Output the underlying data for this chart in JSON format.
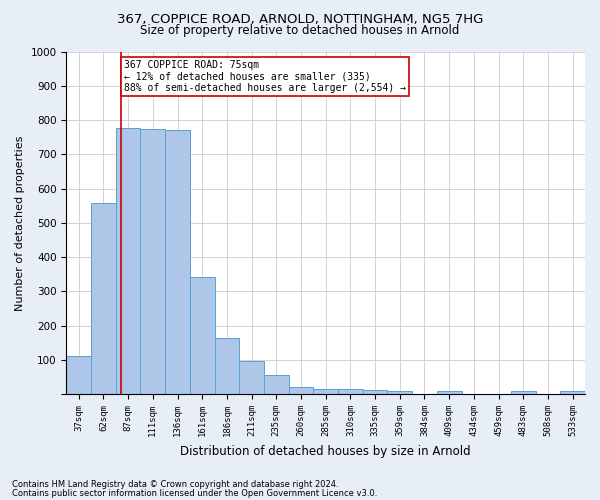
{
  "title1": "367, COPPICE ROAD, ARNOLD, NOTTINGHAM, NG5 7HG",
  "title2": "Size of property relative to detached houses in Arnold",
  "xlabel": "Distribution of detached houses by size in Arnold",
  "ylabel": "Number of detached properties",
  "categories": [
    "37sqm",
    "62sqm",
    "87sqm",
    "111sqm",
    "136sqm",
    "161sqm",
    "186sqm",
    "211sqm",
    "235sqm",
    "260sqm",
    "285sqm",
    "310sqm",
    "335sqm",
    "359sqm",
    "384sqm",
    "409sqm",
    "434sqm",
    "459sqm",
    "483sqm",
    "508sqm",
    "533sqm"
  ],
  "values": [
    112,
    558,
    778,
    775,
    770,
    343,
    165,
    98,
    55,
    20,
    15,
    15,
    13,
    10,
    0,
    10,
    0,
    0,
    10,
    0,
    10
  ],
  "bar_color": "#aec6e8",
  "bar_edge_color": "#5a9fd4",
  "vline_x": 1.72,
  "vline_color": "#cc0000",
  "annotation_text": "367 COPPICE ROAD: 75sqm\n← 12% of detached houses are smaller (335)\n88% of semi-detached houses are larger (2,554) →",
  "annotation_box_color": "#ffffff",
  "annotation_box_edge": "#cc0000",
  "ylim": [
    0,
    1000
  ],
  "yticks": [
    0,
    100,
    200,
    300,
    400,
    500,
    600,
    700,
    800,
    900,
    1000
  ],
  "footnote1": "Contains HM Land Registry data © Crown copyright and database right 2024.",
  "footnote2": "Contains public sector information licensed under the Open Government Licence v3.0.",
  "bg_color": "#e8eef8",
  "plot_bg_color": "#ffffff",
  "grid_color": "#cccccc",
  "title1_fontsize": 9.5,
  "title2_fontsize": 8.5
}
